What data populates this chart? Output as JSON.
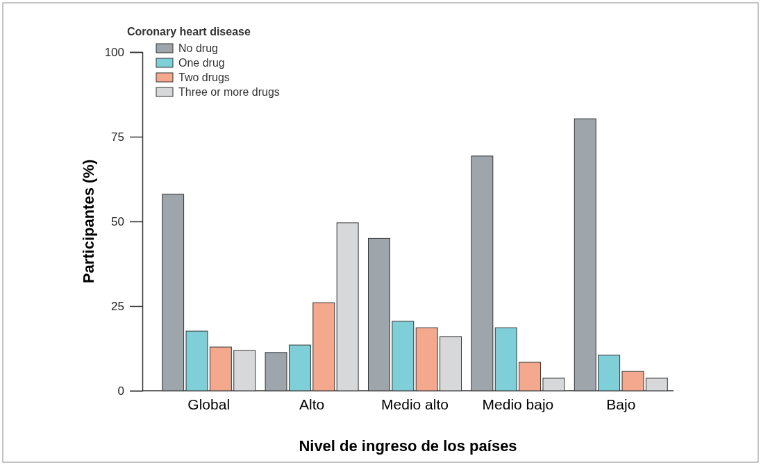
{
  "chart_data": {
    "type": "bar",
    "xlabel": "Nivel de ingreso de los países",
    "ylabel": "Participantes (%)",
    "legend_title": "Coronary heart disease",
    "legend": "top left",
    "categories": [
      "Global",
      "Alto",
      "Medio alto",
      "Medio bajo",
      "Bajo"
    ],
    "ylim": [
      0,
      100
    ],
    "yticks": [
      0,
      25,
      50,
      75,
      100
    ],
    "series": [
      {
        "name": "No drug",
        "color": "#9ea5ab",
        "values": [
          58,
          11.3,
          45,
          69.3,
          80.3
        ]
      },
      {
        "name": "One drug",
        "color": "#7fcfd9",
        "values": [
          17.6,
          13.5,
          20.5,
          18.6,
          10.5
        ]
      },
      {
        "name": "Two drugs",
        "color": "#f4a88e",
        "values": [
          12.9,
          26,
          18.6,
          8.4,
          5.7
        ]
      },
      {
        "name": "Three or more drugs",
        "color": "#d6d8da",
        "values": [
          11.9,
          49.6,
          16,
          3.7,
          3.7
        ]
      }
    ]
  }
}
